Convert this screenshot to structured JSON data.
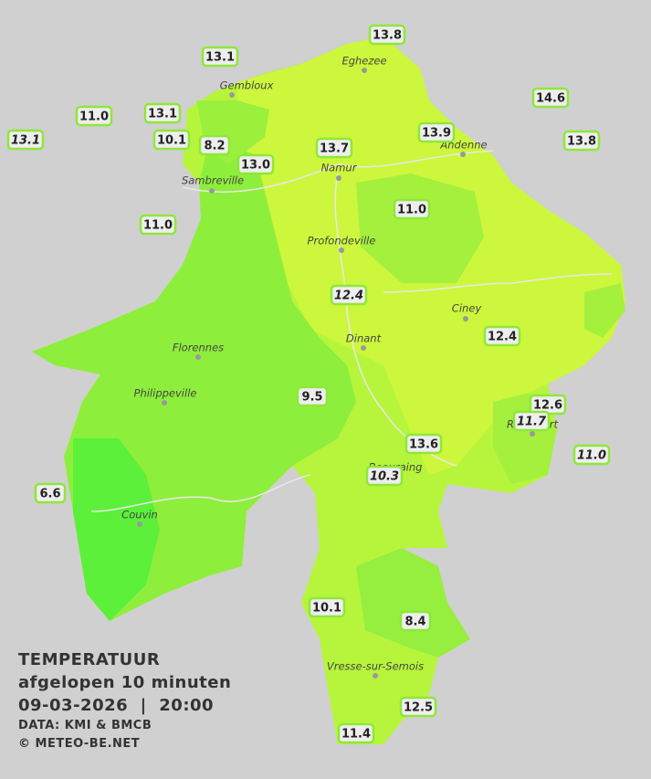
{
  "legend": {
    "title": "TEMPERATUUR",
    "subtitle": "afgelopen 10 minuten",
    "datetime": "09-03-2026  |  20:00",
    "source": "DATA: KMI & BMCB",
    "credit": "© METEO-BE.NET"
  },
  "cities": [
    "Eghezee",
    "Gembloux",
    "Andenne",
    "Namur",
    "Sambreville",
    "Profondeville",
    "Ciney",
    "Dinant",
    "Florennes",
    "Philippeville",
    "Beauraing",
    "Rochefort",
    "Couvin",
    "Vresse-sur-Semois"
  ],
  "stations": [
    {
      "label": "13.8"
    },
    {
      "label": "13.1"
    },
    {
      "label": "14.6"
    },
    {
      "label": "11.0"
    },
    {
      "label": "13.1"
    },
    {
      "label": "13.1",
      "italic": true
    },
    {
      "label": "10.1"
    },
    {
      "label": "8.2"
    },
    {
      "label": "13.9"
    },
    {
      "label": "13.8"
    },
    {
      "label": "13.0"
    },
    {
      "label": "13.7"
    },
    {
      "label": "11.0"
    },
    {
      "label": "11.0"
    },
    {
      "label": "12.4",
      "italic": true
    },
    {
      "label": "12.4"
    },
    {
      "label": "9.5"
    },
    {
      "label": "12.6"
    },
    {
      "label": "11.7",
      "italic": true
    },
    {
      "label": "13.6"
    },
    {
      "label": "11.0",
      "italic": true
    },
    {
      "label": "10.3",
      "italic": true
    },
    {
      "label": "6.6"
    },
    {
      "label": "10.1"
    },
    {
      "label": "8.4"
    },
    {
      "label": "12.5"
    },
    {
      "label": "11.4"
    }
  ]
}
